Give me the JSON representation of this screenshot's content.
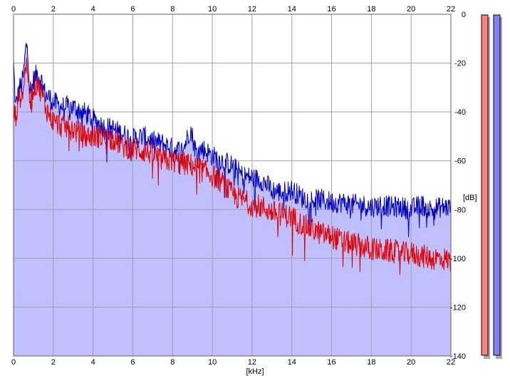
{
  "chart_data": {
    "type": "line",
    "title": "",
    "xlabel": "[kHz]",
    "ylabel": "[dB]",
    "xlim": [
      0,
      22
    ],
    "ylim": [
      -140,
      0
    ],
    "x_ticks": [
      0,
      2,
      4,
      6,
      8,
      10,
      12,
      14,
      16,
      18,
      20,
      22
    ],
    "y_ticks": [
      0,
      -20,
      -40,
      -60,
      -80,
      -100,
      -120,
      -140
    ],
    "x_tick_labels": [
      "0",
      "2",
      "4",
      "6",
      "8",
      "10",
      "12",
      "14",
      "16",
      "18",
      "20",
      "22"
    ],
    "y_tick_labels": [
      "0",
      "-20",
      "-40",
      "-60",
      "-80",
      "-100",
      "-120",
      "-140"
    ],
    "grid": true,
    "x_label_position_top_and_bottom": true,
    "y_label_position": "right",
    "series": [
      {
        "color": "#0000c0",
        "fill": "#c0c0ff",
        "x": [
          0,
          0.1,
          0.2,
          0.3,
          0.4,
          0.5,
          0.6,
          0.7,
          0.8,
          0.9,
          1.0,
          1.2,
          1.4,
          1.6,
          1.8,
          2.0,
          2.5,
          3.0,
          3.5,
          4.0,
          4.5,
          5.0,
          5.5,
          6.0,
          6.5,
          7.0,
          7.5,
          8.0,
          8.5,
          8.9,
          9.2,
          9.5,
          10.0,
          10.5,
          11.0,
          11.5,
          12.0,
          12.5,
          13.0,
          13.5,
          14.0,
          14.5,
          15.0,
          15.5,
          16.0,
          16.5,
          17.0,
          17.5,
          18.0,
          18.5,
          19.0,
          19.5,
          20.0,
          20.5,
          21.0,
          21.5,
          22.0
        ],
        "y": [
          -20,
          -38,
          -34,
          -30,
          -29,
          -25,
          -15,
          -11,
          -30,
          -31,
          -27,
          -24,
          -27,
          -33,
          -34,
          -36,
          -38,
          -38,
          -40,
          -43,
          -46,
          -47,
          -49,
          -51,
          -50,
          -52,
          -53,
          -55,
          -56,
          -47,
          -57,
          -55,
          -58,
          -60,
          -62,
          -66,
          -67,
          -68,
          -72,
          -73,
          -72,
          -75,
          -76,
          -76,
          -77,
          -77,
          -78,
          -78,
          -79,
          -78,
          -79,
          -79,
          -80,
          -78,
          -80,
          -79,
          -79
        ]
      },
      {
        "color": "#e00000",
        "x": [
          0,
          0.1,
          0.2,
          0.3,
          0.4,
          0.5,
          0.6,
          0.7,
          0.8,
          0.9,
          1.0,
          1.2,
          1.4,
          1.6,
          1.8,
          2.0,
          2.5,
          3.0,
          3.5,
          4.0,
          4.5,
          5.0,
          5.5,
          6.0,
          6.5,
          7.0,
          7.5,
          8.0,
          8.5,
          9.0,
          9.5,
          10.0,
          10.5,
          11.0,
          11.5,
          12.0,
          12.5,
          13.0,
          13.5,
          14.0,
          14.5,
          15.0,
          15.5,
          16.0,
          16.5,
          17.0,
          17.5,
          18.0,
          18.5,
          19.0,
          19.5,
          20.0,
          20.5,
          21.0,
          21.5,
          22.0
        ],
        "y": [
          -40,
          -42,
          -38,
          -34,
          -33,
          -30,
          -22,
          -20,
          -34,
          -36,
          -30,
          -28,
          -32,
          -38,
          -41,
          -44,
          -46,
          -47,
          -50,
          -50,
          -50,
          -51,
          -54,
          -55,
          -56,
          -57,
          -60,
          -60,
          -61,
          -62,
          -64,
          -66,
          -69,
          -74,
          -76,
          -78,
          -79,
          -81,
          -82,
          -83,
          -86,
          -88,
          -90,
          -91,
          -93,
          -94,
          -95,
          -96,
          -97,
          -97,
          -98,
          -98,
          -99,
          -100,
          -100,
          -101
        ]
      }
    ],
    "level_meters": [
      {
        "color": "#ff8080"
      },
      {
        "color": "#8080ff"
      }
    ]
  }
}
